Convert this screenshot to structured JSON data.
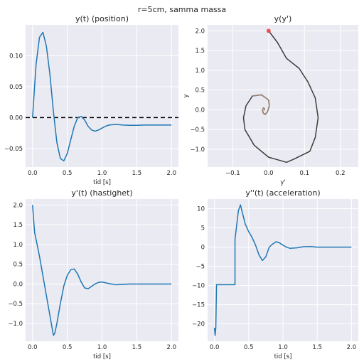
{
  "figure": {
    "suptitle": "r=5cm, samma massa"
  },
  "colors": {
    "panel_bg": "#eaeaf2",
    "grid": "#ffffff",
    "line": "#1f77b4",
    "zero_line": "#000000",
    "start_marker": "#e8413a"
  },
  "chart_data": [
    {
      "type": "line",
      "title": "y(t) (position)",
      "xlabel": "tid [s]",
      "ylabel": "",
      "xlim": [
        -0.1,
        2.1
      ],
      "ylim": [
        -0.08,
        0.15
      ],
      "xticks": [
        0.0,
        0.5,
        1.0,
        1.5,
        2.0
      ],
      "xtick_labels": [
        "0.0",
        "0.5",
        "1.0",
        "1.5",
        "2.0"
      ],
      "yticks": [
        -0.05,
        0.0,
        0.05,
        0.1
      ],
      "ytick_labels": [
        "−0.05",
        "0.00",
        "0.05",
        "0.10"
      ],
      "hline": 0.0,
      "series": [
        {
          "x": [
            0.0,
            0.05,
            0.1,
            0.15,
            0.2,
            0.25,
            0.3,
            0.35,
            0.4,
            0.45,
            0.5,
            0.55,
            0.6,
            0.65,
            0.7,
            0.75,
            0.8,
            0.85,
            0.9,
            0.95,
            1.0,
            1.05,
            1.1,
            1.2,
            1.3,
            1.4,
            1.5,
            1.6,
            1.7,
            1.8,
            1.9,
            2.0
          ],
          "y": [
            0.0,
            0.085,
            0.13,
            0.138,
            0.115,
            0.07,
            0.01,
            -0.04,
            -0.066,
            -0.07,
            -0.058,
            -0.036,
            -0.014,
            0.0,
            0.002,
            -0.004,
            -0.014,
            -0.02,
            -0.022,
            -0.02,
            -0.017,
            -0.014,
            -0.012,
            -0.011,
            -0.012,
            -0.0125,
            -0.0125,
            -0.012,
            -0.012,
            -0.012,
            -0.012,
            -0.012
          ]
        }
      ]
    },
    {
      "type": "line",
      "title": "y(y')",
      "xlabel": "y'",
      "ylabel": "y",
      "xlim": [
        -0.17,
        0.25
      ],
      "ylim": [
        -1.45,
        2.15
      ],
      "xticks": [
        -0.1,
        0.0,
        0.1,
        0.2
      ],
      "xtick_labels": [
        "−0.1",
        "0.0",
        "0.1",
        "0.2"
      ],
      "yticks": [
        -1.0,
        -0.5,
        0.0,
        0.5,
        1.0,
        1.5,
        2.0
      ],
      "ytick_labels": [
        "−1.0",
        "−0.5",
        "0.0",
        "0.5",
        "1.0",
        "1.5",
        "2.0"
      ],
      "start_point": {
        "x": 0.0,
        "y": 2.0
      },
      "series": [
        {
          "x": [
            0.0,
            0.025,
            0.05,
            0.085,
            0.11,
            0.13,
            0.138,
            0.13,
            0.115,
            0.07,
            0.05,
            0.0,
            -0.04,
            -0.066,
            -0.07,
            -0.063,
            -0.045,
            -0.02,
            0.0,
            0.002,
            -0.003,
            -0.01,
            -0.015,
            -0.017,
            -0.014,
            -0.012,
            -0.011,
            -0.012
          ],
          "y": [
            2.0,
            1.7,
            1.3,
            1.05,
            0.7,
            0.3,
            -0.2,
            -0.7,
            -1.05,
            -1.25,
            -1.33,
            -1.2,
            -0.9,
            -0.5,
            -0.2,
            0.1,
            0.35,
            0.38,
            0.25,
            0.1,
            -0.05,
            -0.12,
            -0.08,
            0.0,
            0.05,
            0.03,
            0.0,
            0.0
          ]
        }
      ]
    },
    {
      "type": "line",
      "title": "y'(t) (hastighet)",
      "xlabel": "tid [s]",
      "ylabel": "",
      "xlim": [
        -0.1,
        2.1
      ],
      "ylim": [
        -1.45,
        2.15
      ],
      "xticks": [
        0.0,
        0.5,
        1.0,
        1.5,
        2.0
      ],
      "xtick_labels": [
        "0.0",
        "0.5",
        "1.0",
        "1.5",
        "2.0"
      ],
      "yticks": [
        -1.0,
        -0.5,
        0.0,
        0.5,
        1.0,
        1.5,
        2.0
      ],
      "ytick_labels": [
        "−1.0",
        "−0.5",
        "0.0",
        "0.5",
        "1.0",
        "1.5",
        "2.0"
      ],
      "series": [
        {
          "x": [
            0.0,
            0.03,
            0.06,
            0.1,
            0.15,
            0.2,
            0.25,
            0.3,
            0.32,
            0.35,
            0.4,
            0.45,
            0.5,
            0.55,
            0.6,
            0.65,
            0.7,
            0.75,
            0.8,
            0.85,
            0.9,
            0.95,
            1.0,
            1.05,
            1.1,
            1.2,
            1.3,
            1.4,
            1.5,
            1.6,
            1.7,
            1.8,
            1.9,
            2.0
          ],
          "y": [
            2.0,
            1.3,
            1.05,
            0.7,
            0.2,
            -0.3,
            -0.8,
            -1.3,
            -1.25,
            -1.0,
            -0.5,
            -0.05,
            0.22,
            0.36,
            0.38,
            0.25,
            0.05,
            -0.1,
            -0.12,
            -0.06,
            0.0,
            0.04,
            0.05,
            0.03,
            0.01,
            -0.02,
            -0.01,
            0.0,
            0.0,
            0.0,
            0.0,
            0.0,
            0.0,
            0.0
          ]
        }
      ]
    },
    {
      "type": "line",
      "title": "y''(t) (acceleration)",
      "xlabel": "tid [s]",
      "ylabel": "",
      "xlim": [
        -0.1,
        2.1
      ],
      "ylim": [
        -24.5,
        12.5
      ],
      "xticks": [
        0.0,
        0.5,
        1.0,
        1.5,
        2.0
      ],
      "xtick_labels": [
        "0.0",
        "0.5",
        "1.0",
        "1.5",
        "2.0"
      ],
      "yticks": [
        -20,
        -15,
        -10,
        -5,
        0,
        5,
        10
      ],
      "ytick_labels": [
        "−20",
        "−15",
        "−10",
        "−5",
        "0",
        "5",
        "10"
      ],
      "series": [
        {
          "x": [
            0.0,
            0.01,
            0.02,
            0.03,
            0.03,
            0.1,
            0.2,
            0.3,
            0.3,
            0.32,
            0.35,
            0.38,
            0.4,
            0.45,
            0.5,
            0.55,
            0.6,
            0.65,
            0.7,
            0.75,
            0.8,
            0.85,
            0.9,
            0.95,
            1.0,
            1.05,
            1.1,
            1.2,
            1.3,
            1.4,
            1.5,
            1.6,
            1.8,
            2.0
          ],
          "y": [
            -21.0,
            -23.0,
            -21.0,
            -10.0,
            -9.8,
            -9.8,
            -9.8,
            -9.8,
            2.0,
            5.0,
            9.5,
            11.0,
            9.5,
            6.0,
            4.0,
            2.5,
            0.5,
            -2.0,
            -3.5,
            -2.5,
            0.0,
            0.8,
            1.4,
            1.1,
            0.5,
            0.0,
            -0.3,
            -0.2,
            0.1,
            0.15,
            0.0,
            0.0,
            0.0,
            0.0
          ]
        }
      ]
    }
  ]
}
